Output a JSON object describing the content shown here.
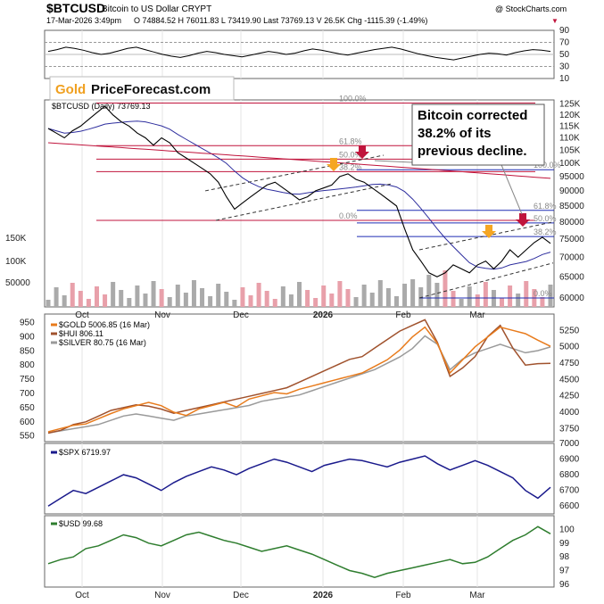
{
  "header": {
    "symbol": "$BTCUSD",
    "name": "Bitcoin to US Dollar CRYPT",
    "datetime": "17-Mar-2026 3:49pm",
    "ohlc": "O 74884.52  H 76011.83  L 73419.90  Last 73769.13  V 26.5K  Chg -1115.39 (-1.49%)",
    "chg_arrow": "▼",
    "watermark": "@ StockCharts.com"
  },
  "logo": {
    "part1": "Gold",
    "part2": "PriceForecast.com"
  },
  "annotation": {
    "lines": [
      "Bitcoin corrected",
      "38.2% of its",
      "previous decline."
    ]
  },
  "colors": {
    "price": "#000000",
    "ma_blue": "#2e2e9e",
    "ma_red": "#c0143c",
    "fib_red": "#c0143c",
    "fib_blue": "#1f2cb3",
    "volume_up": "#e8a0aa",
    "volume_down": "#aaaaaa",
    "rsi": "#000000",
    "gold": "#e87b1c",
    "hui": "#a0522d",
    "silver": "#9a9a9a",
    "spx": "#1a1a8c",
    "usd": "#2e7d2e",
    "arrow_red": "#c0143c",
    "arrow_orange": "#f5a623"
  },
  "chart_data": [
    {
      "type": "line",
      "panel": "rsi",
      "y_ticks": [
        "90",
        "70",
        "50",
        "30",
        "10"
      ],
      "ylim": [
        10,
        90
      ],
      "values": [
        55,
        58,
        62,
        60,
        57,
        53,
        50,
        52,
        56,
        60,
        62,
        58,
        54,
        50,
        47,
        45,
        48,
        52,
        55,
        53,
        50,
        48,
        46,
        49,
        52,
        55,
        53,
        50,
        52,
        56,
        59,
        57,
        54,
        51,
        49,
        52,
        55,
        58,
        60,
        62,
        59,
        55,
        51,
        48,
        45,
        43,
        41,
        44,
        47,
        50,
        52,
        51,
        49,
        53,
        56,
        58,
        57,
        55
      ]
    },
    {
      "type": "line",
      "panel": "price",
      "title": "$BTCUSD (Daily) 73769.13",
      "scale": "log",
      "ylim": [
        58000,
        127000
      ],
      "y_ticks": [
        "125K",
        "120K",
        "115K",
        "110K",
        "105K",
        "100K",
        "95000",
        "90000",
        "85000",
        "80000",
        "75000",
        "70000",
        "65000",
        "60000"
      ],
      "x_ticks": [
        "Oct",
        "Nov",
        "Dec",
        "2026",
        "Feb",
        "Mar"
      ],
      "values": [
        114000,
        112000,
        110000,
        113000,
        115000,
        118000,
        121000,
        124000,
        120000,
        117000,
        115000,
        112000,
        110000,
        107000,
        110000,
        108000,
        104000,
        102000,
        100000,
        98000,
        96000,
        93000,
        88000,
        84000,
        86000,
        88000,
        90000,
        92000,
        93000,
        91000,
        89000,
        87000,
        88000,
        90000,
        91000,
        92000,
        95000,
        96000,
        94000,
        93000,
        91000,
        89000,
        87000,
        85000,
        78000,
        72000,
        69000,
        66000,
        65000,
        66000,
        68000,
        67000,
        66000,
        68000,
        69000,
        67000,
        69000,
        72000,
        70000,
        72000,
        74000,
        75500,
        73769
      ],
      "fib_levels": [
        {
          "label": "100.0%",
          "value": 125500,
          "color": "red"
        },
        {
          "label": "61.8%",
          "value": 106800,
          "color": "red"
        },
        {
          "label": "50.0%",
          "value": 101500,
          "color": "red"
        },
        {
          "label": "38.2%",
          "value": 96800,
          "color": "red"
        },
        {
          "label": "0.0%",
          "value": 80500,
          "color": "red"
        },
        {
          "label": "100.0%",
          "value": 97500,
          "color": "blue"
        },
        {
          "label": "61.8%",
          "value": 83600,
          "color": "blue"
        },
        {
          "label": "50.0%",
          "value": 79700,
          "color": "blue"
        },
        {
          "label": "38.2%",
          "value": 75700,
          "color": "blue"
        },
        {
          "label": "0.0%",
          "value": 60000,
          "color": "blue"
        }
      ],
      "volume_ticks": [
        "150K",
        "100K",
        "50000"
      ]
    },
    {
      "type": "line",
      "panel": "gold-hui-silver",
      "series": [
        {
          "name": "$GOLD 5006.85 (16 Mar)",
          "values": [
            3700,
            3750,
            3800,
            3820,
            3900,
            3980,
            4050,
            4100,
            4150,
            4100,
            4000,
            3950,
            4050,
            4100,
            4150,
            4080,
            4200,
            4250,
            4300,
            4280,
            4350,
            4400,
            4450,
            4500,
            4550,
            4600,
            4700,
            4800,
            4950,
            5150,
            5300,
            5050,
            4600,
            4800,
            5000,
            5150,
            5300,
            5250,
            5200,
            5100,
            5006
          ]
        },
        {
          "name": "$HUI 806.11",
          "values": [
            560,
            570,
            590,
            600,
            620,
            640,
            650,
            660,
            655,
            645,
            630,
            640,
            650,
            660,
            670,
            680,
            690,
            700,
            710,
            720,
            740,
            760,
            780,
            800,
            820,
            830,
            860,
            890,
            920,
            940,
            960,
            880,
            760,
            790,
            830,
            900,
            940,
            860,
            800,
            805,
            806
          ]
        },
        {
          "name": "$SILVER 80.75 (16 Mar)",
          "values": [
            40,
            41,
            42,
            43,
            44,
            46,
            48,
            49,
            48,
            47,
            46,
            48,
            49,
            50,
            51,
            52,
            53,
            55,
            56,
            57,
            58,
            60,
            62,
            64,
            66,
            68,
            70,
            73,
            76,
            80,
            86,
            82,
            70,
            75,
            78,
            80,
            82,
            80,
            78,
            79,
            80.75
          ]
        }
      ],
      "y_left_ticks": [
        "950",
        "900",
        "850",
        "800",
        "750",
        "700",
        "650",
        "600",
        "550"
      ],
      "y_right_ticks": [
        "5250",
        "5000",
        "4750",
        "4500",
        "4250",
        "4000",
        "3750"
      ]
    },
    {
      "type": "line",
      "panel": "spx",
      "series": [
        {
          "name": "$SPX 6719.97",
          "values": [
            6600,
            6650,
            6700,
            6680,
            6720,
            6760,
            6800,
            6780,
            6740,
            6700,
            6750,
            6790,
            6820,
            6850,
            6830,
            6800,
            6840,
            6870,
            6900,
            6880,
            6850,
            6820,
            6860,
            6880,
            6900,
            6890,
            6870,
            6850,
            6880,
            6900,
            6920,
            6870,
            6830,
            6860,
            6890,
            6860,
            6820,
            6780,
            6700,
            6650,
            6720
          ]
        }
      ],
      "y_ticks": [
        "7000",
        "6900",
        "6800",
        "6700",
        "6600"
      ],
      "ylim": [
        6550,
        7000
      ]
    },
    {
      "type": "line",
      "panel": "usd",
      "series": [
        {
          "name": "$USD 99.68",
          "values": [
            97.5,
            97.8,
            98.0,
            98.6,
            98.8,
            99.2,
            99.6,
            99.4,
            99.0,
            98.8,
            99.2,
            99.6,
            99.8,
            99.5,
            99.2,
            99.0,
            98.7,
            98.4,
            98.6,
            98.8,
            98.5,
            98.2,
            97.8,
            97.4,
            97.0,
            96.8,
            96.5,
            96.8,
            97.0,
            97.2,
            97.4,
            97.6,
            97.8,
            97.5,
            97.6,
            98.0,
            98.6,
            99.2,
            99.6,
            100.2,
            99.68
          ]
        }
      ],
      "y_ticks": [
        "100",
        "99",
        "98",
        "97",
        "96"
      ],
      "ylim": [
        95.8,
        101
      ]
    }
  ]
}
